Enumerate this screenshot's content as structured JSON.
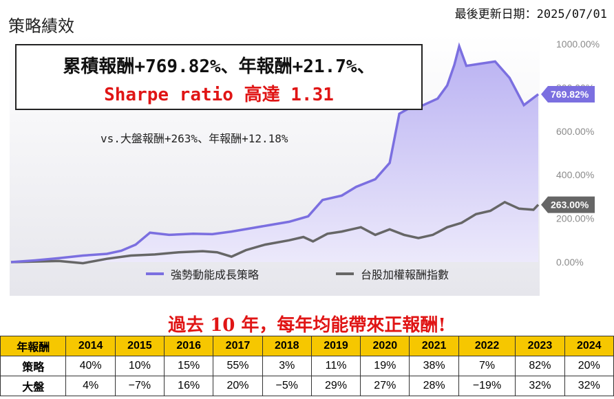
{
  "page": {
    "title": "策略績效",
    "updated": "最後更新日期：2025/07/01",
    "box_line1": "累積報酬+769.82%、年報酬+21.7%、",
    "box_line2": "Sharpe ratio 高達 1.31",
    "vs_text": "vs.大盤報酬+263%、年報酬+12.18%",
    "headline": "過去 10 年，每年均能帶來正報酬!"
  },
  "chart_data": {
    "type": "area",
    "x_unit": "year",
    "ylim": [
      0,
      1000
    ],
    "y_ticks": [
      "0.00%",
      "200.00%",
      "400.00%",
      "600.00%",
      "800.00%",
      "1000.00%"
    ],
    "grid": false,
    "legend_position": "bottom",
    "colors": {
      "strategy": "#7b6fe0",
      "market": "#666666"
    },
    "series": [
      {
        "name": "強勢動能成長策略",
        "end_label": "769.82%",
        "points": [
          [
            2014,
            0
          ],
          [
            2014.5,
            8
          ],
          [
            2015,
            18
          ],
          [
            2015.5,
            30
          ],
          [
            2016,
            38
          ],
          [
            2016.3,
            52
          ],
          [
            2016.6,
            80
          ],
          [
            2016.9,
            135
          ],
          [
            2017.3,
            125
          ],
          [
            2017.8,
            130
          ],
          [
            2018.2,
            128
          ],
          [
            2018.6,
            140
          ],
          [
            2019,
            155
          ],
          [
            2019.4,
            170
          ],
          [
            2019.8,
            185
          ],
          [
            2020.2,
            210
          ],
          [
            2020.5,
            285
          ],
          [
            2020.9,
            305
          ],
          [
            2021.2,
            345
          ],
          [
            2021.6,
            380
          ],
          [
            2021.9,
            455
          ],
          [
            2022.1,
            680
          ],
          [
            2022.3,
            705
          ],
          [
            2022.6,
            720
          ],
          [
            2022.9,
            750
          ],
          [
            2023.1,
            810
          ],
          [
            2023.25,
            905
          ],
          [
            2023.35,
            990
          ],
          [
            2023.5,
            900
          ],
          [
            2023.8,
            910
          ],
          [
            2024.1,
            920
          ],
          [
            2024.4,
            845
          ],
          [
            2024.7,
            720
          ],
          [
            2025,
            769.82
          ]
        ]
      },
      {
        "name": "台股加權報酬指數",
        "end_label": "263.00%",
        "points": [
          [
            2014,
            0
          ],
          [
            2015,
            5
          ],
          [
            2015.5,
            -5
          ],
          [
            2016,
            15
          ],
          [
            2016.5,
            30
          ],
          [
            2017,
            35
          ],
          [
            2017.5,
            45
          ],
          [
            2018,
            50
          ],
          [
            2018.3,
            45
          ],
          [
            2018.6,
            25
          ],
          [
            2018.9,
            55
          ],
          [
            2019.3,
            80
          ],
          [
            2019.8,
            100
          ],
          [
            2020.1,
            115
          ],
          [
            2020.3,
            95
          ],
          [
            2020.6,
            130
          ],
          [
            2020.9,
            140
          ],
          [
            2021.3,
            160
          ],
          [
            2021.6,
            125
          ],
          [
            2021.9,
            150
          ],
          [
            2022.2,
            125
          ],
          [
            2022.5,
            110
          ],
          [
            2022.8,
            125
          ],
          [
            2023.1,
            160
          ],
          [
            2023.4,
            180
          ],
          [
            2023.7,
            220
          ],
          [
            2024,
            235
          ],
          [
            2024.3,
            275
          ],
          [
            2024.6,
            245
          ],
          [
            2024.9,
            240
          ],
          [
            2025,
            263
          ]
        ]
      }
    ]
  },
  "table": {
    "header": [
      "年報酬",
      "2014",
      "2015",
      "2016",
      "2017",
      "2018",
      "2019",
      "2020",
      "2021",
      "2022",
      "2023",
      "2024"
    ],
    "rows": [
      [
        "策略",
        "40%",
        "10%",
        "15%",
        "55%",
        "3%",
        "11%",
        "19%",
        "38%",
        "7%",
        "82%",
        "20%"
      ],
      [
        "大盤",
        "4%",
        "−7%",
        "16%",
        "20%",
        "−5%",
        "29%",
        "27%",
        "28%",
        "−19%",
        "32%",
        "32%"
      ]
    ]
  }
}
